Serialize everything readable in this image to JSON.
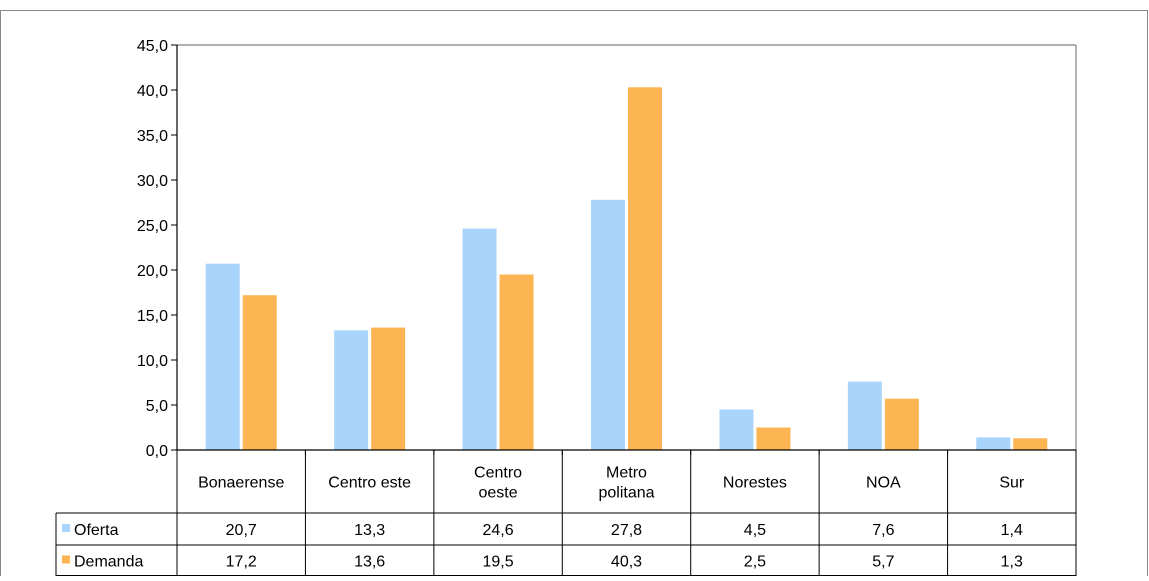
{
  "chart_data": {
    "type": "bar",
    "categories": [
      [
        "Bonaerense"
      ],
      [
        "Centro este"
      ],
      [
        "Centro",
        "oeste"
      ],
      [
        "Metro",
        "politana"
      ],
      [
        "Norestes"
      ],
      [
        "NOA"
      ],
      [
        "Sur"
      ]
    ],
    "series": [
      {
        "name": "Oferta",
        "color": "#a9d4fc",
        "values": [
          20.7,
          13.3,
          24.6,
          27.8,
          4.5,
          7.6,
          1.4
        ],
        "labels": [
          "20,7",
          "13,3",
          "24,6",
          "27,8",
          "4,5",
          "7,6",
          "1,4"
        ]
      },
      {
        "name": "Demanda",
        "color": "#fdb554",
        "values": [
          17.2,
          13.6,
          19.5,
          40.3,
          2.5,
          5.7,
          1.3
        ],
        "labels": [
          "17,2",
          "13,6",
          "19,5",
          "40,3",
          "2,5",
          "5,7",
          "1,3"
        ]
      }
    ],
    "ylim": [
      0,
      45
    ],
    "y_ticks": [
      "0,0",
      "5,0",
      "10,0",
      "15,0",
      "20,0",
      "25,0",
      "30,0",
      "35,0",
      "40,0",
      "45,0"
    ],
    "grid": false,
    "data_table": true
  }
}
